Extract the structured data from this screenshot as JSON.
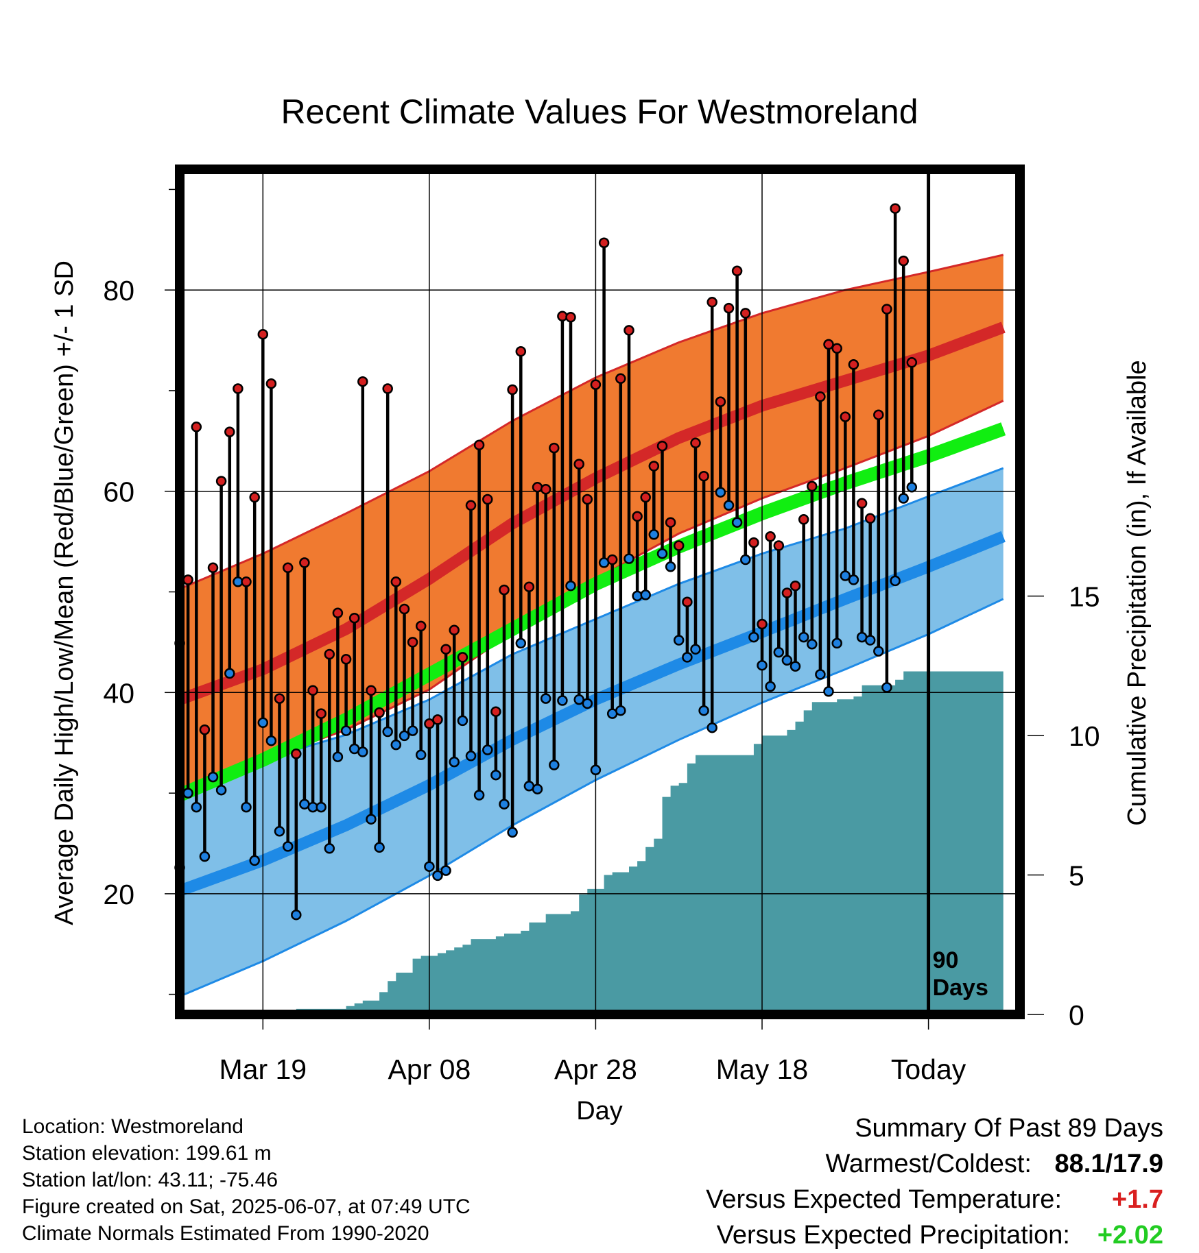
{
  "chart_data": {
    "type": "line",
    "title": "Recent Climate Values For Westmoreland",
    "xlabel": "Day",
    "ylabel": "Average Daily High/Low/Mean (Red/Blue/Green) +/- 1 SD",
    "y2label": "Cumulative Precipitation (in), If Available",
    "ylim": [
      8,
      92
    ],
    "y2lim": [
      0,
      30.3
    ],
    "xlim": [
      "2025-03-09",
      "2025-06-18"
    ],
    "x_ticks": [
      {
        "date": "2025-03-19",
        "label": "Mar 19"
      },
      {
        "date": "2025-04-08",
        "label": "Apr 08"
      },
      {
        "date": "2025-04-28",
        "label": "Apr 28"
      },
      {
        "date": "2025-05-18",
        "label": "May 18"
      },
      {
        "date": "2025-06-07",
        "label": "Today"
      }
    ],
    "y_ticks": [
      20,
      40,
      60,
      80
    ],
    "y2_ticks": [
      0,
      5,
      10,
      15
    ],
    "grid": true,
    "today": "2025-06-07",
    "today_label_line1": "90",
    "today_label_line2": "Days",
    "colors": {
      "high_band": "#f07a30",
      "high_mean": "#d42828",
      "low_band": "#7fbfe8",
      "low_mean": "#1e8ae6",
      "mean": "#11ee11",
      "precip": "#4a9aa3",
      "high_point": "#d42020",
      "low_point": "#1e80e0"
    },
    "normals": {
      "dates": [
        "2025-03-09",
        "2025-03-19",
        "2025-03-29",
        "2025-04-08",
        "2025-04-18",
        "2025-04-28",
        "2025-05-08",
        "2025-05-18",
        "2025-05-28",
        "2025-06-07",
        "2025-06-16"
      ],
      "high_upper": [
        50.3,
        53.8,
        57.8,
        62.0,
        67.0,
        71.3,
        74.8,
        77.7,
        80.0,
        81.8,
        83.5
      ],
      "high_mean": [
        39.3,
        42.3,
        46.3,
        51.3,
        56.8,
        61.3,
        65.3,
        68.5,
        71.0,
        73.5,
        76.3
      ],
      "high_lower": [
        30.3,
        33.3,
        36.3,
        40.3,
        46.0,
        51.3,
        55.8,
        59.3,
        62.3,
        65.5,
        69.0
      ],
      "mean": [
        29.8,
        33.3,
        37.3,
        41.8,
        46.3,
        50.8,
        54.5,
        57.8,
        60.8,
        63.5,
        66.2
      ],
      "low_upper": [
        31.3,
        33.3,
        35.8,
        39.3,
        43.8,
        47.3,
        50.8,
        53.8,
        56.3,
        59.5,
        62.3
      ],
      "low_mean": [
        20.3,
        23.3,
        26.8,
        30.8,
        35.3,
        39.3,
        42.8,
        46.0,
        49.3,
        52.5,
        55.5
      ],
      "low_lower": [
        9.8,
        13.3,
        17.3,
        21.8,
        26.8,
        31.3,
        35.3,
        39.0,
        42.3,
        45.8,
        49.3
      ]
    },
    "daily": {
      "start_date": "2025-03-09",
      "highs": [
        44.9,
        51.2,
        66.4,
        36.3,
        52.4,
        61.0,
        65.9,
        70.2,
        51.0,
        59.4,
        75.6,
        70.7,
        39.4,
        52.4,
        33.9,
        52.9,
        40.2,
        37.9,
        43.8,
        47.9,
        43.3,
        47.4,
        70.9,
        40.2,
        38.0,
        70.2,
        51.0,
        48.3,
        45.0,
        46.6,
        36.9,
        37.3,
        44.3,
        46.2,
        43.5,
        58.6,
        64.6,
        59.2,
        38.1,
        50.2,
        70.1,
        73.9,
        50.5,
        60.4,
        60.2,
        64.3,
        77.4,
        77.3,
        62.7,
        59.2,
        70.6,
        84.7,
        53.2,
        71.2,
        76.0,
        57.5,
        59.4,
        62.5,
        64.5,
        56.9,
        54.6,
        49.0,
        64.8,
        61.5,
        78.8,
        68.9,
        78.2,
        81.9,
        77.7,
        54.9,
        46.8,
        55.5,
        54.6,
        49.9,
        50.6,
        57.2,
        60.5,
        69.4,
        74.6,
        74.2,
        67.4,
        72.6,
        58.8,
        57.3,
        67.6,
        78.1,
        88.1,
        82.9,
        72.8
      ],
      "lows": [
        22.6,
        30.0,
        28.6,
        23.7,
        31.6,
        30.3,
        41.9,
        51.0,
        28.6,
        23.3,
        37.0,
        35.2,
        26.2,
        24.7,
        17.9,
        28.9,
        28.6,
        28.6,
        24.5,
        33.6,
        36.2,
        34.4,
        34.1,
        27.4,
        24.6,
        36.1,
        34.8,
        35.7,
        36.2,
        33.8,
        22.7,
        21.8,
        22.3,
        33.1,
        37.2,
        33.7,
        29.8,
        34.3,
        31.8,
        28.9,
        26.1,
        44.9,
        30.7,
        30.4,
        39.4,
        32.8,
        39.2,
        50.6,
        39.3,
        38.9,
        32.3,
        52.9,
        37.9,
        38.2,
        53.3,
        49.6,
        49.7,
        55.7,
        53.8,
        52.5,
        45.2,
        43.5,
        44.3,
        38.2,
        36.5,
        59.9,
        58.6,
        56.9,
        53.2,
        45.5,
        42.7,
        40.6,
        44.0,
        43.2,
        42.6,
        45.5,
        44.8,
        41.8,
        40.1,
        44.9,
        51.6,
        51.2,
        45.5,
        45.2,
        44.1,
        40.5,
        51.1,
        59.3,
        60.4
      ]
    },
    "precip_cumulative": {
      "start_date": "2025-03-09",
      "values": [
        0.0,
        0.0,
        0.0,
        0.0,
        0.0,
        0.0,
        0.0,
        0.0,
        0.0,
        0.0,
        0.0,
        0.1,
        0.1,
        0.15,
        0.2,
        0.2,
        0.2,
        0.2,
        0.2,
        0.2,
        0.3,
        0.4,
        0.5,
        0.5,
        0.8,
        1.2,
        1.5,
        1.5,
        2.0,
        2.1,
        2.1,
        2.2,
        2.3,
        2.4,
        2.5,
        2.7,
        2.7,
        2.7,
        2.8,
        2.9,
        2.9,
        3.0,
        3.3,
        3.3,
        3.6,
        3.6,
        3.6,
        3.7,
        4.3,
        4.5,
        4.5,
        5.0,
        5.1,
        5.1,
        5.3,
        5.5,
        6.0,
        6.3,
        7.8,
        8.2,
        8.3,
        9.0,
        9.3,
        9.3,
        9.3,
        9.3,
        9.3,
        9.3,
        9.3,
        9.7,
        10.0,
        10.0,
        10.0,
        10.2,
        10.5,
        10.9,
        11.2,
        11.2,
        11.2,
        11.3,
        11.3,
        11.4,
        11.8,
        11.8,
        11.8,
        11.8,
        12.0,
        12.3,
        12.3,
        12.3,
        12.3,
        12.3,
        12.3,
        12.3,
        12.3,
        12.3,
        12.3,
        12.3,
        12.3
      ]
    }
  },
  "info": {
    "location": "Location: Westmoreland",
    "elevation": "Station elevation: 199.61 m",
    "latlon": "Station lat/lon: 43.11; -75.46",
    "created": "Figure created on Sat, 2025-06-07, at 07:49 UTC",
    "normals": "Climate Normals Estimated From 1990-2020"
  },
  "summary": {
    "heading": "Summary Of Past 89 Days",
    "warm_label": "Warmest/Coldest:",
    "warm_value": "88.1/17.9",
    "temp_label": "Versus Expected Temperature:",
    "temp_value": "+1.7",
    "precip_label": "Versus Expected Precipitation:",
    "precip_value": "+2.02"
  }
}
